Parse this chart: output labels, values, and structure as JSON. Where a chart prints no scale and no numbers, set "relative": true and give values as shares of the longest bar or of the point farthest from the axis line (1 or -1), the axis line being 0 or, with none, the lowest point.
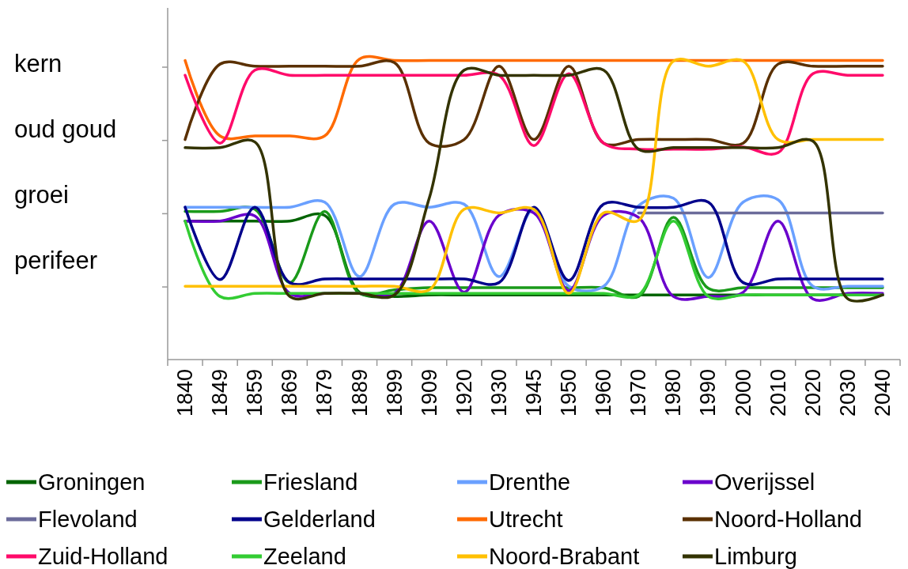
{
  "chart_data": {
    "type": "line",
    "categories": [
      "1840",
      "1849",
      "1859",
      "1869",
      "1879",
      "1889",
      "1899",
      "1909",
      "1920",
      "1930",
      "1945",
      "1950",
      "1960",
      "1970",
      "1980",
      "1990",
      "2000",
      "2010",
      "2020",
      "2030",
      "2040"
    ],
    "relative": true,
    "annotations": [
      "kern",
      "oud goud",
      "groei",
      "perifeer"
    ],
    "legend": "bottom",
    "series": [
      {
        "name": "Groningen",
        "color": "#006400",
        "values": [
          0.461,
          0.461,
          0.461,
          0.461,
          0.48,
          0.224,
          0.21,
          0.215,
          0.215,
          0.215,
          0.215,
          0.215,
          0.215,
          0.215,
          0.215,
          0.215,
          0.215,
          0.215,
          0.215,
          0.215,
          0.215
        ]
      },
      {
        "name": "Friesland",
        "color": "#1a9a1a",
        "values": [
          0.493,
          0.493,
          0.5,
          0.256,
          0.493,
          0.22,
          0.232,
          0.239,
          0.239,
          0.239,
          0.239,
          0.239,
          0.239,
          0.21,
          0.473,
          0.237,
          0.239,
          0.239,
          0.239,
          0.239,
          0.239
        ]
      },
      {
        "name": "Drenthe",
        "color": "#6aa0ff",
        "values": [
          0.507,
          0.507,
          0.507,
          0.507,
          0.524,
          0.276,
          0.517,
          0.507,
          0.517,
          0.276,
          0.5,
          0.244,
          0.244,
          0.512,
          0.537,
          0.273,
          0.524,
          0.532,
          0.244,
          0.244,
          0.244
        ]
      },
      {
        "name": "Overijssel",
        "color": "#6a00cc",
        "values": [
          0.461,
          0.461,
          0.478,
          0.22,
          0.22,
          0.22,
          0.22,
          0.461,
          0.224,
          0.48,
          0.488,
          0.229,
          0.48,
          0.473,
          0.21,
          0.21,
          0.224,
          0.461,
          0.202,
          0.22,
          0.22
        ]
      },
      {
        "name": "Flevoland",
        "color": "#6b6b9a",
        "values": [
          null,
          null,
          null,
          null,
          null,
          null,
          null,
          null,
          null,
          null,
          null,
          null,
          null,
          0.488,
          0.488,
          0.488,
          0.488,
          0.488,
          0.488,
          0.488,
          0.488
        ]
      },
      {
        "name": "Gelderland",
        "color": "#00008b",
        "values": [
          0.507,
          0.266,
          0.507,
          0.256,
          0.268,
          0.268,
          0.268,
          0.268,
          0.268,
          0.256,
          0.507,
          0.263,
          0.517,
          0.507,
          0.507,
          0.524,
          0.256,
          0.268,
          0.268,
          0.268,
          0.268
        ]
      },
      {
        "name": "Utrecht",
        "color": "#ff6a00",
        "values": [
          0.995,
          0.744,
          0.744,
          0.744,
          0.744,
          1.0,
          0.995,
          0.995,
          0.995,
          0.995,
          0.995,
          0.995,
          0.995,
          0.995,
          0.995,
          0.995,
          0.995,
          0.995,
          0.995,
          0.995,
          0.995
        ]
      },
      {
        "name": "Noord-Holland",
        "color": "#5a3000",
        "values": [
          0.732,
          0.983,
          0.976,
          0.976,
          0.976,
          0.976,
          0.988,
          0.72,
          0.732,
          0.976,
          0.732,
          0.976,
          0.72,
          0.732,
          0.732,
          0.732,
          0.72,
          0.983,
          0.976,
          0.976,
          0.976
        ]
      },
      {
        "name": "Zuid-Holland",
        "color": "#ff0a6a",
        "values": [
          0.946,
          0.72,
          0.963,
          0.946,
          0.946,
          0.946,
          0.946,
          0.946,
          0.946,
          0.946,
          0.712,
          0.951,
          0.72,
          0.7,
          0.7,
          0.7,
          0.707,
          0.688,
          0.951,
          0.946,
          0.946
        ]
      },
      {
        "name": "Zeeland",
        "color": "#33cc33",
        "values": [
          0.461,
          0.21,
          0.22,
          0.22,
          0.22,
          0.22,
          0.22,
          0.22,
          0.22,
          0.22,
          0.22,
          0.22,
          0.22,
          0.215,
          0.461,
          0.21,
          0.215,
          0.215,
          0.215,
          0.215,
          0.215
        ]
      },
      {
        "name": "Noord-Brabant",
        "color": "#ffc000",
        "values": [
          0.244,
          0.244,
          0.244,
          0.244,
          0.244,
          0.244,
          0.244,
          0.232,
          0.5,
          0.488,
          0.5,
          0.22,
          0.488,
          0.463,
          0.993,
          0.976,
          0.993,
          0.732,
          0.732,
          0.732,
          0.732
        ]
      },
      {
        "name": "Limburg",
        "color": "#333300",
        "values": [
          0.705,
          0.705,
          0.724,
          0.21,
          0.22,
          0.22,
          0.215,
          0.537,
          0.963,
          0.946,
          0.946,
          0.946,
          0.963,
          0.7,
          0.705,
          0.705,
          0.705,
          0.705,
          0.727,
          0.202,
          0.215
        ]
      }
    ]
  }
}
